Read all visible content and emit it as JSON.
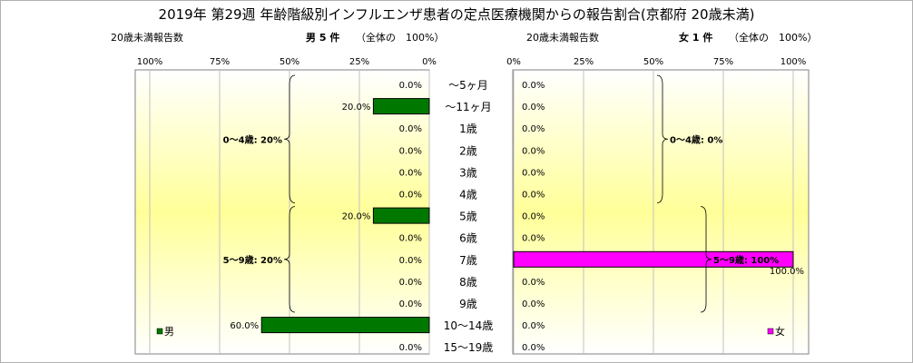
{
  "title": "2019年 第29週 年齢階級別インフルエンザ患者の定点医療機関からの報告割合(京都府 20歳未満)",
  "chart_data": [
    {
      "type": "bar",
      "orientation": "horizontal",
      "direction": "right-to-left",
      "side": "male",
      "header_left": "20歳未満報告数",
      "header_count": "男 5 件",
      "header_total": "（全体の　100%）",
      "legend": "男",
      "legend_position": "bottom-left",
      "color": "#007800",
      "xlim": [
        0,
        100
      ],
      "ticks": [
        "100%",
        "75%",
        "50%",
        "25%",
        "0%"
      ],
      "grid": true,
      "values": [
        0,
        20,
        0,
        0,
        0,
        0,
        20,
        0,
        0,
        0,
        0,
        60,
        0
      ],
      "data_labels": [
        "0.0%",
        "20.0%",
        "0.0%",
        "0.0%",
        "0.0%",
        "0.0%",
        "20.0%",
        "0.0%",
        "0.0%",
        "0.0%",
        "0.0%",
        "60.0%",
        "0.0%"
      ],
      "groups": [
        {
          "label": "0〜4歳: 20%",
          "from": 0,
          "to": 5
        },
        {
          "label": "5〜9歳: 20%",
          "from": 6,
          "to": 10
        }
      ]
    },
    {
      "type": "bar",
      "orientation": "horizontal",
      "direction": "left-to-right",
      "side": "female",
      "header_left": "20歳未満報告数",
      "header_count": "女 1 件",
      "header_total": "（全体の　100%）",
      "legend": "女",
      "legend_position": "bottom-right",
      "color": "#ff00ff",
      "xlim": [
        0,
        100
      ],
      "ticks": [
        "0%",
        "25%",
        "50%",
        "75%",
        "100%"
      ],
      "grid": true,
      "values": [
        0,
        0,
        0,
        0,
        0,
        0,
        0,
        0,
        100,
        0,
        0,
        0,
        0
      ],
      "data_labels": [
        "0.0%",
        "0.0%",
        "0.0%",
        "0.0%",
        "0.0%",
        "0.0%",
        "0.0%",
        "0.0%",
        "100.0%",
        "0.0%",
        "0.0%",
        "0.0%",
        "0.0%"
      ],
      "groups": [
        {
          "label": "0〜4歳: 0%",
          "from": 0,
          "to": 5
        },
        {
          "label": "5〜9歳: 100%",
          "from": 6,
          "to": 10
        }
      ]
    }
  ],
  "categories": [
    "〜5ヶ月",
    "〜11ヶ月",
    "1歳",
    "2歳",
    "3歳",
    "4歳",
    "5歳",
    "6歳",
    "7歳",
    "8歳",
    "9歳",
    "10〜14歳",
    "15〜19歳"
  ]
}
